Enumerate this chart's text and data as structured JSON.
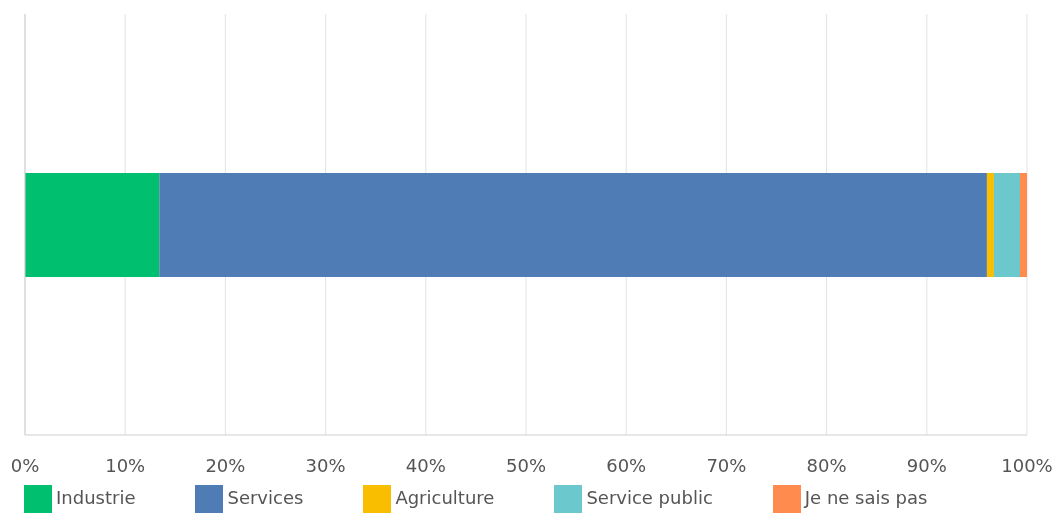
{
  "chart_data": {
    "type": "bar",
    "orientation": "horizontal",
    "stacked": true,
    "categories": [
      null
    ],
    "series": [
      {
        "name": "Industrie",
        "color": "#00bf6f",
        "values": [
          13.4
        ]
      },
      {
        "name": "Services",
        "color": "#507cb6",
        "values": [
          82.6
        ]
      },
      {
        "name": "Agriculture",
        "color": "#f9be00",
        "values": [
          0.7
        ]
      },
      {
        "name": "Service public",
        "color": "#6bc8cd",
        "values": [
          2.6
        ]
      },
      {
        "name": "Je ne sais pas",
        "color": "#ff8b4f",
        "values": [
          0.7
        ]
      }
    ],
    "xlim": [
      0,
      100
    ],
    "xticks": [
      {
        "value": 0,
        "label": "0%"
      },
      {
        "value": 10,
        "label": "10%"
      },
      {
        "value": 20,
        "label": "20%"
      },
      {
        "value": 30,
        "label": "30%"
      },
      {
        "value": 40,
        "label": "40%"
      },
      {
        "value": 50,
        "label": "50%"
      },
      {
        "value": 60,
        "label": "60%"
      },
      {
        "value": 70,
        "label": "70%"
      },
      {
        "value": 80,
        "label": "80%"
      },
      {
        "value": 90,
        "label": "90%"
      },
      {
        "value": 100,
        "label": "100%"
      }
    ],
    "grid": "x",
    "legend": "bottom"
  }
}
